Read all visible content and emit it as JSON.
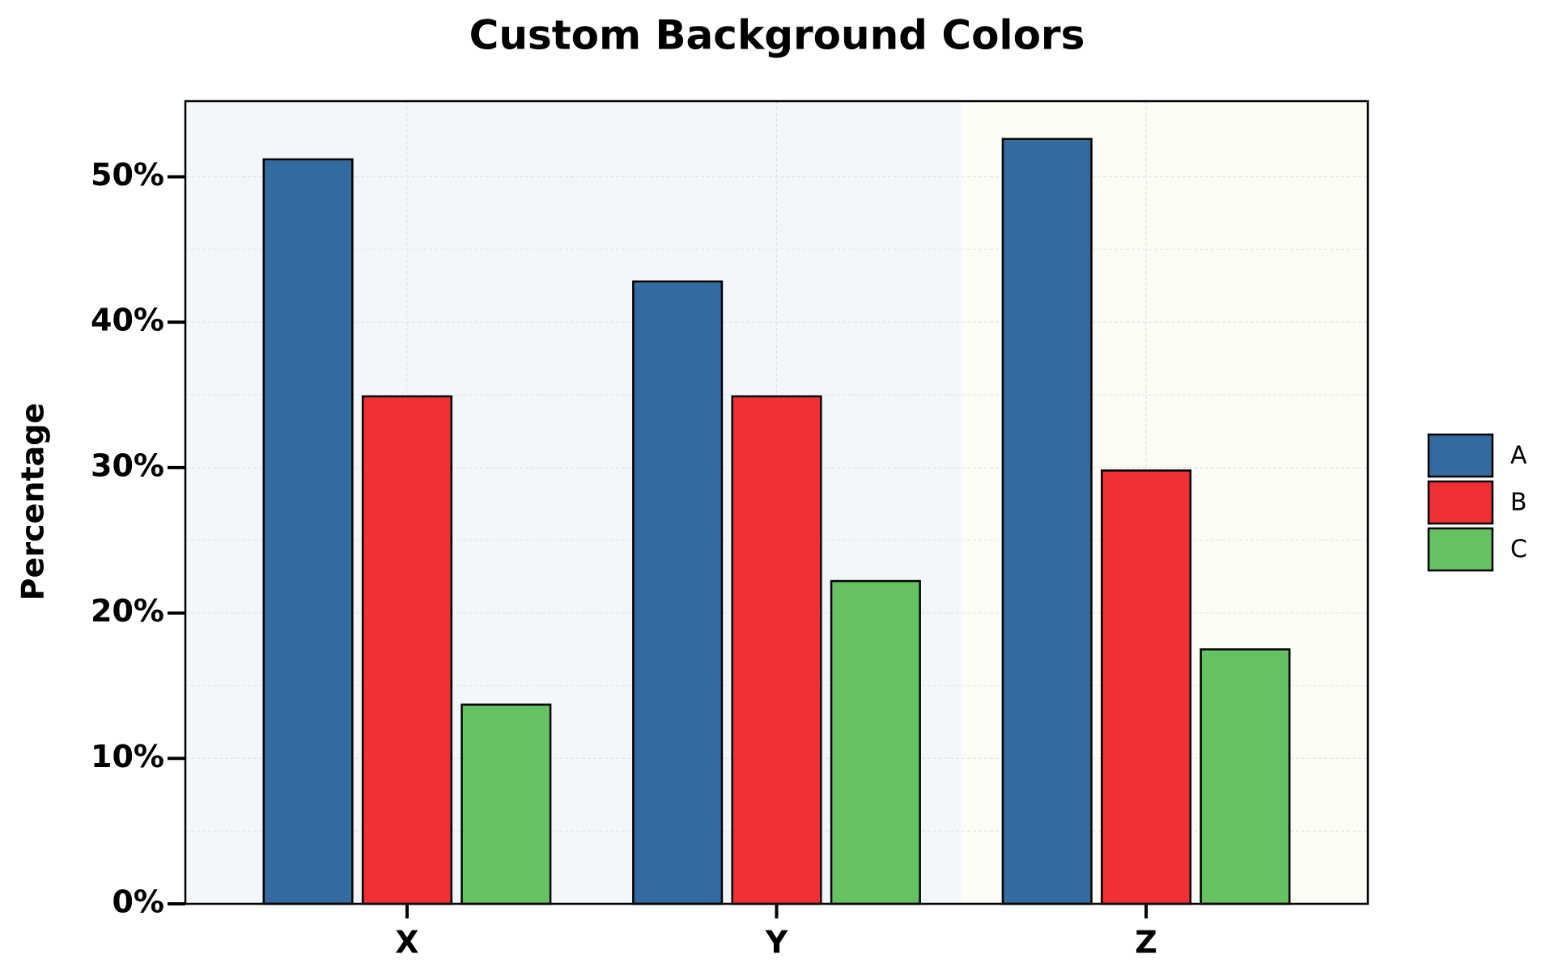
{
  "chart_data": {
    "type": "bar",
    "title": "Custom Background Colors",
    "y_label": "Percentage",
    "categories": [
      "X",
      "Y",
      "Z"
    ],
    "series": [
      {
        "name": "A",
        "color": "#336ba0",
        "values": [
          51.2,
          42.8,
          52.6
        ]
      },
      {
        "name": "B",
        "color": "#f03034",
        "values": [
          34.9,
          34.9,
          29.8
        ]
      },
      {
        "name": "C",
        "color": "#66c162",
        "values": [
          13.7,
          22.2,
          17.5
        ]
      }
    ],
    "category_backgrounds": [
      "#f2f7fb",
      "#f2f7fb",
      "#fdfdf6"
    ],
    "ylim": [
      0,
      55.2
    ],
    "yticks": [
      {
        "value": 0,
        "label": "0%"
      },
      {
        "value": 10,
        "label": "10%"
      },
      {
        "value": 20,
        "label": "20%"
      },
      {
        "value": 30,
        "label": "30%"
      },
      {
        "value": 40,
        "label": "40%"
      },
      {
        "value": 50,
        "label": "50%"
      }
    ],
    "minor_yticks": [
      5,
      15,
      25,
      35,
      45
    ],
    "grid": true,
    "legend": "right"
  }
}
